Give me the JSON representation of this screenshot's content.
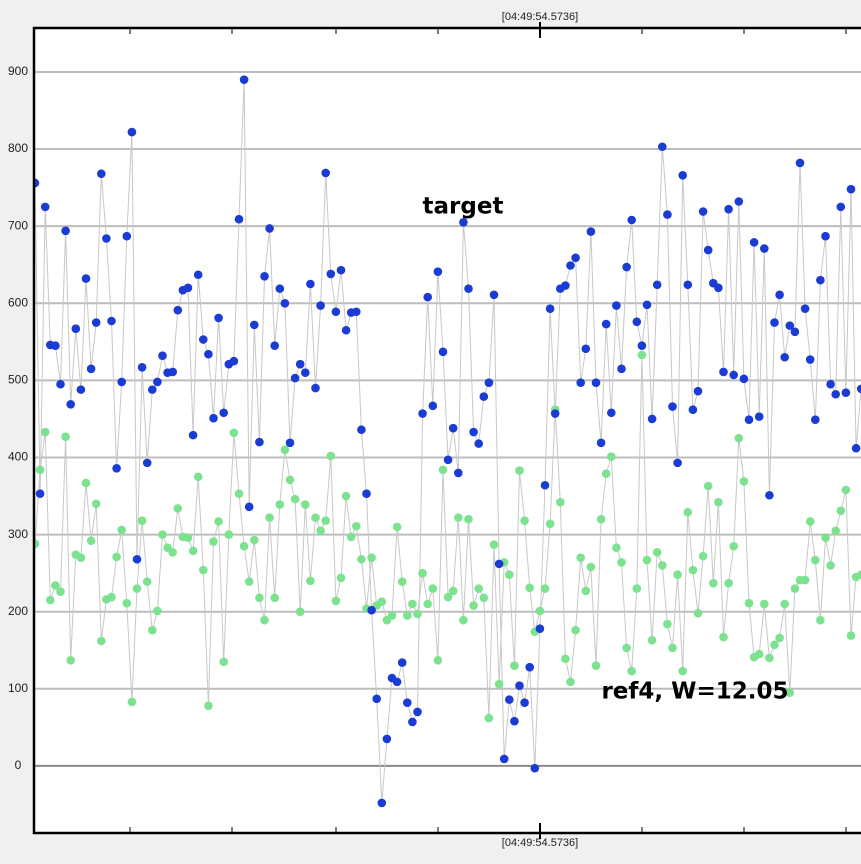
{
  "chart_data": {
    "type": "line",
    "marker_label": "[04:49:54.5736]",
    "annotations": [
      "target",
      "ref4, W=12.05"
    ],
    "ylim": [
      -87,
      957
    ],
    "yticks": [
      0,
      100,
      200,
      300,
      400,
      500,
      600,
      700,
      800,
      900
    ],
    "grid": true,
    "line_color": "#c8c8c8",
    "series": [
      {
        "name": "target",
        "color": "#1a3bd4",
        "values": [
          756,
          353,
          725,
          546,
          545,
          495,
          694,
          469,
          567,
          488,
          632,
          515,
          575,
          768,
          684,
          577,
          386,
          498,
          687,
          822,
          268,
          517,
          393,
          488,
          498,
          532,
          510,
          511,
          591,
          617,
          620,
          429,
          637,
          553,
          534,
          451,
          581,
          458,
          521,
          525,
          709,
          890,
          336,
          572,
          420,
          635,
          697,
          545,
          619,
          600,
          419,
          503,
          521,
          510,
          625,
          490,
          597,
          769,
          638,
          589,
          643,
          565,
          588,
          589,
          436,
          353,
          202,
          87,
          -48,
          35,
          114,
          109,
          134,
          82,
          57,
          70,
          457,
          608,
          467,
          641,
          537,
          397,
          438,
          380,
          705,
          619,
          433,
          418,
          479,
          497,
          611,
          262,
          9,
          86,
          58,
          104,
          82,
          128,
          -3,
          178,
          364,
          593,
          457,
          619,
          623,
          649,
          659,
          497,
          541,
          693,
          497,
          419,
          573,
          458,
          597,
          515,
          647,
          708,
          576,
          545,
          598,
          450,
          624,
          803,
          715,
          466,
          393,
          766,
          624,
          462,
          486,
          719,
          669,
          626,
          620,
          511,
          722,
          507,
          732,
          502,
          449,
          679,
          453,
          671,
          351,
          575,
          611,
          530,
          571,
          563,
          782,
          593,
          527,
          449,
          630,
          687,
          495,
          482,
          725,
          484,
          748,
          412,
          489
        ]
      },
      {
        "name": "ref4, W=12.05",
        "color": "#7de28f",
        "values": [
          288,
          384,
          433,
          215,
          234,
          226,
          427,
          137,
          274,
          270,
          367,
          292,
          340,
          162,
          216,
          219,
          271,
          306,
          211,
          83,
          230,
          318,
          239,
          176,
          201,
          300,
          283,
          277,
          334,
          297,
          296,
          279,
          375,
          254,
          78,
          291,
          317,
          135,
          300,
          432,
          353,
          285,
          239,
          293,
          218,
          189,
          322,
          218,
          339,
          410,
          371,
          346,
          200,
          339,
          240,
          322,
          305,
          318,
          402,
          214,
          244,
          350,
          297,
          311,
          268,
          204,
          270,
          208,
          213,
          189,
          195,
          310,
          239,
          195,
          210,
          197,
          250,
          210,
          230,
          137,
          384,
          219,
          227,
          322,
          189,
          320,
          208,
          230,
          218,
          62,
          287,
          106,
          264,
          248,
          130,
          383,
          318,
          231,
          174,
          201,
          230,
          314,
          462,
          342,
          139,
          109,
          176,
          270,
          227,
          258,
          130,
          320,
          379,
          401,
          283,
          264,
          153,
          123,
          230,
          533,
          267,
          163,
          277,
          260,
          184,
          153,
          248,
          123,
          329,
          254,
          198,
          272,
          363,
          237,
          342,
          167,
          237,
          285,
          425,
          369,
          211,
          141,
          145,
          210,
          140,
          157,
          166,
          210,
          95,
          230,
          241,
          241,
          317,
          267,
          189,
          296,
          260,
          305,
          331,
          358,
          169,
          245,
          248
        ]
      }
    ]
  }
}
